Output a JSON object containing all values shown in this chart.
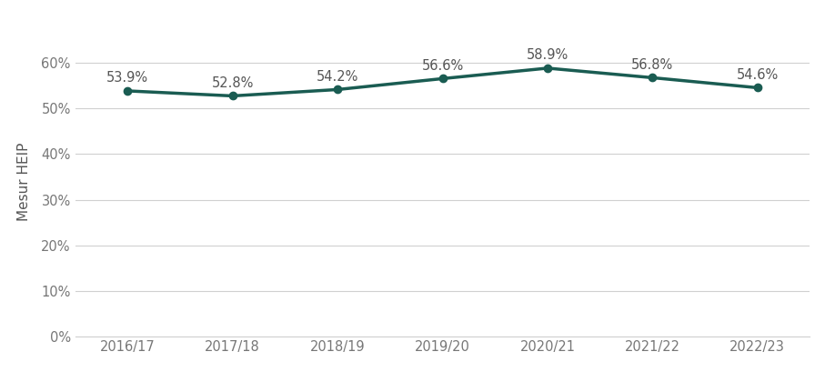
{
  "categories": [
    "2016/17",
    "2017/18",
    "2018/19",
    "2019/20",
    "2020/21",
    "2021/22",
    "2022/23"
  ],
  "values": [
    0.539,
    0.528,
    0.542,
    0.566,
    0.589,
    0.568,
    0.546
  ],
  "labels": [
    "53.9%",
    "52.8%",
    "54.2%",
    "56.6%",
    "58.9%",
    "56.8%",
    "54.6%"
  ],
  "line_color": "#1a5c52",
  "marker_color": "#1a5c52",
  "ylabel": "Mesur HEIP",
  "ylim": [
    0,
    0.68
  ],
  "yticks": [
    0,
    0.1,
    0.2,
    0.3,
    0.4,
    0.5,
    0.6
  ],
  "ytick_labels": [
    "0%",
    "10%",
    "20%",
    "30%",
    "40%",
    "50%",
    "60%"
  ],
  "background_color": "#ffffff",
  "grid_color": "#d0d0d0",
  "label_fontsize": 10.5,
  "tick_fontsize": 10.5,
  "ylabel_fontsize": 11,
  "line_width": 2.5,
  "marker_size": 6
}
